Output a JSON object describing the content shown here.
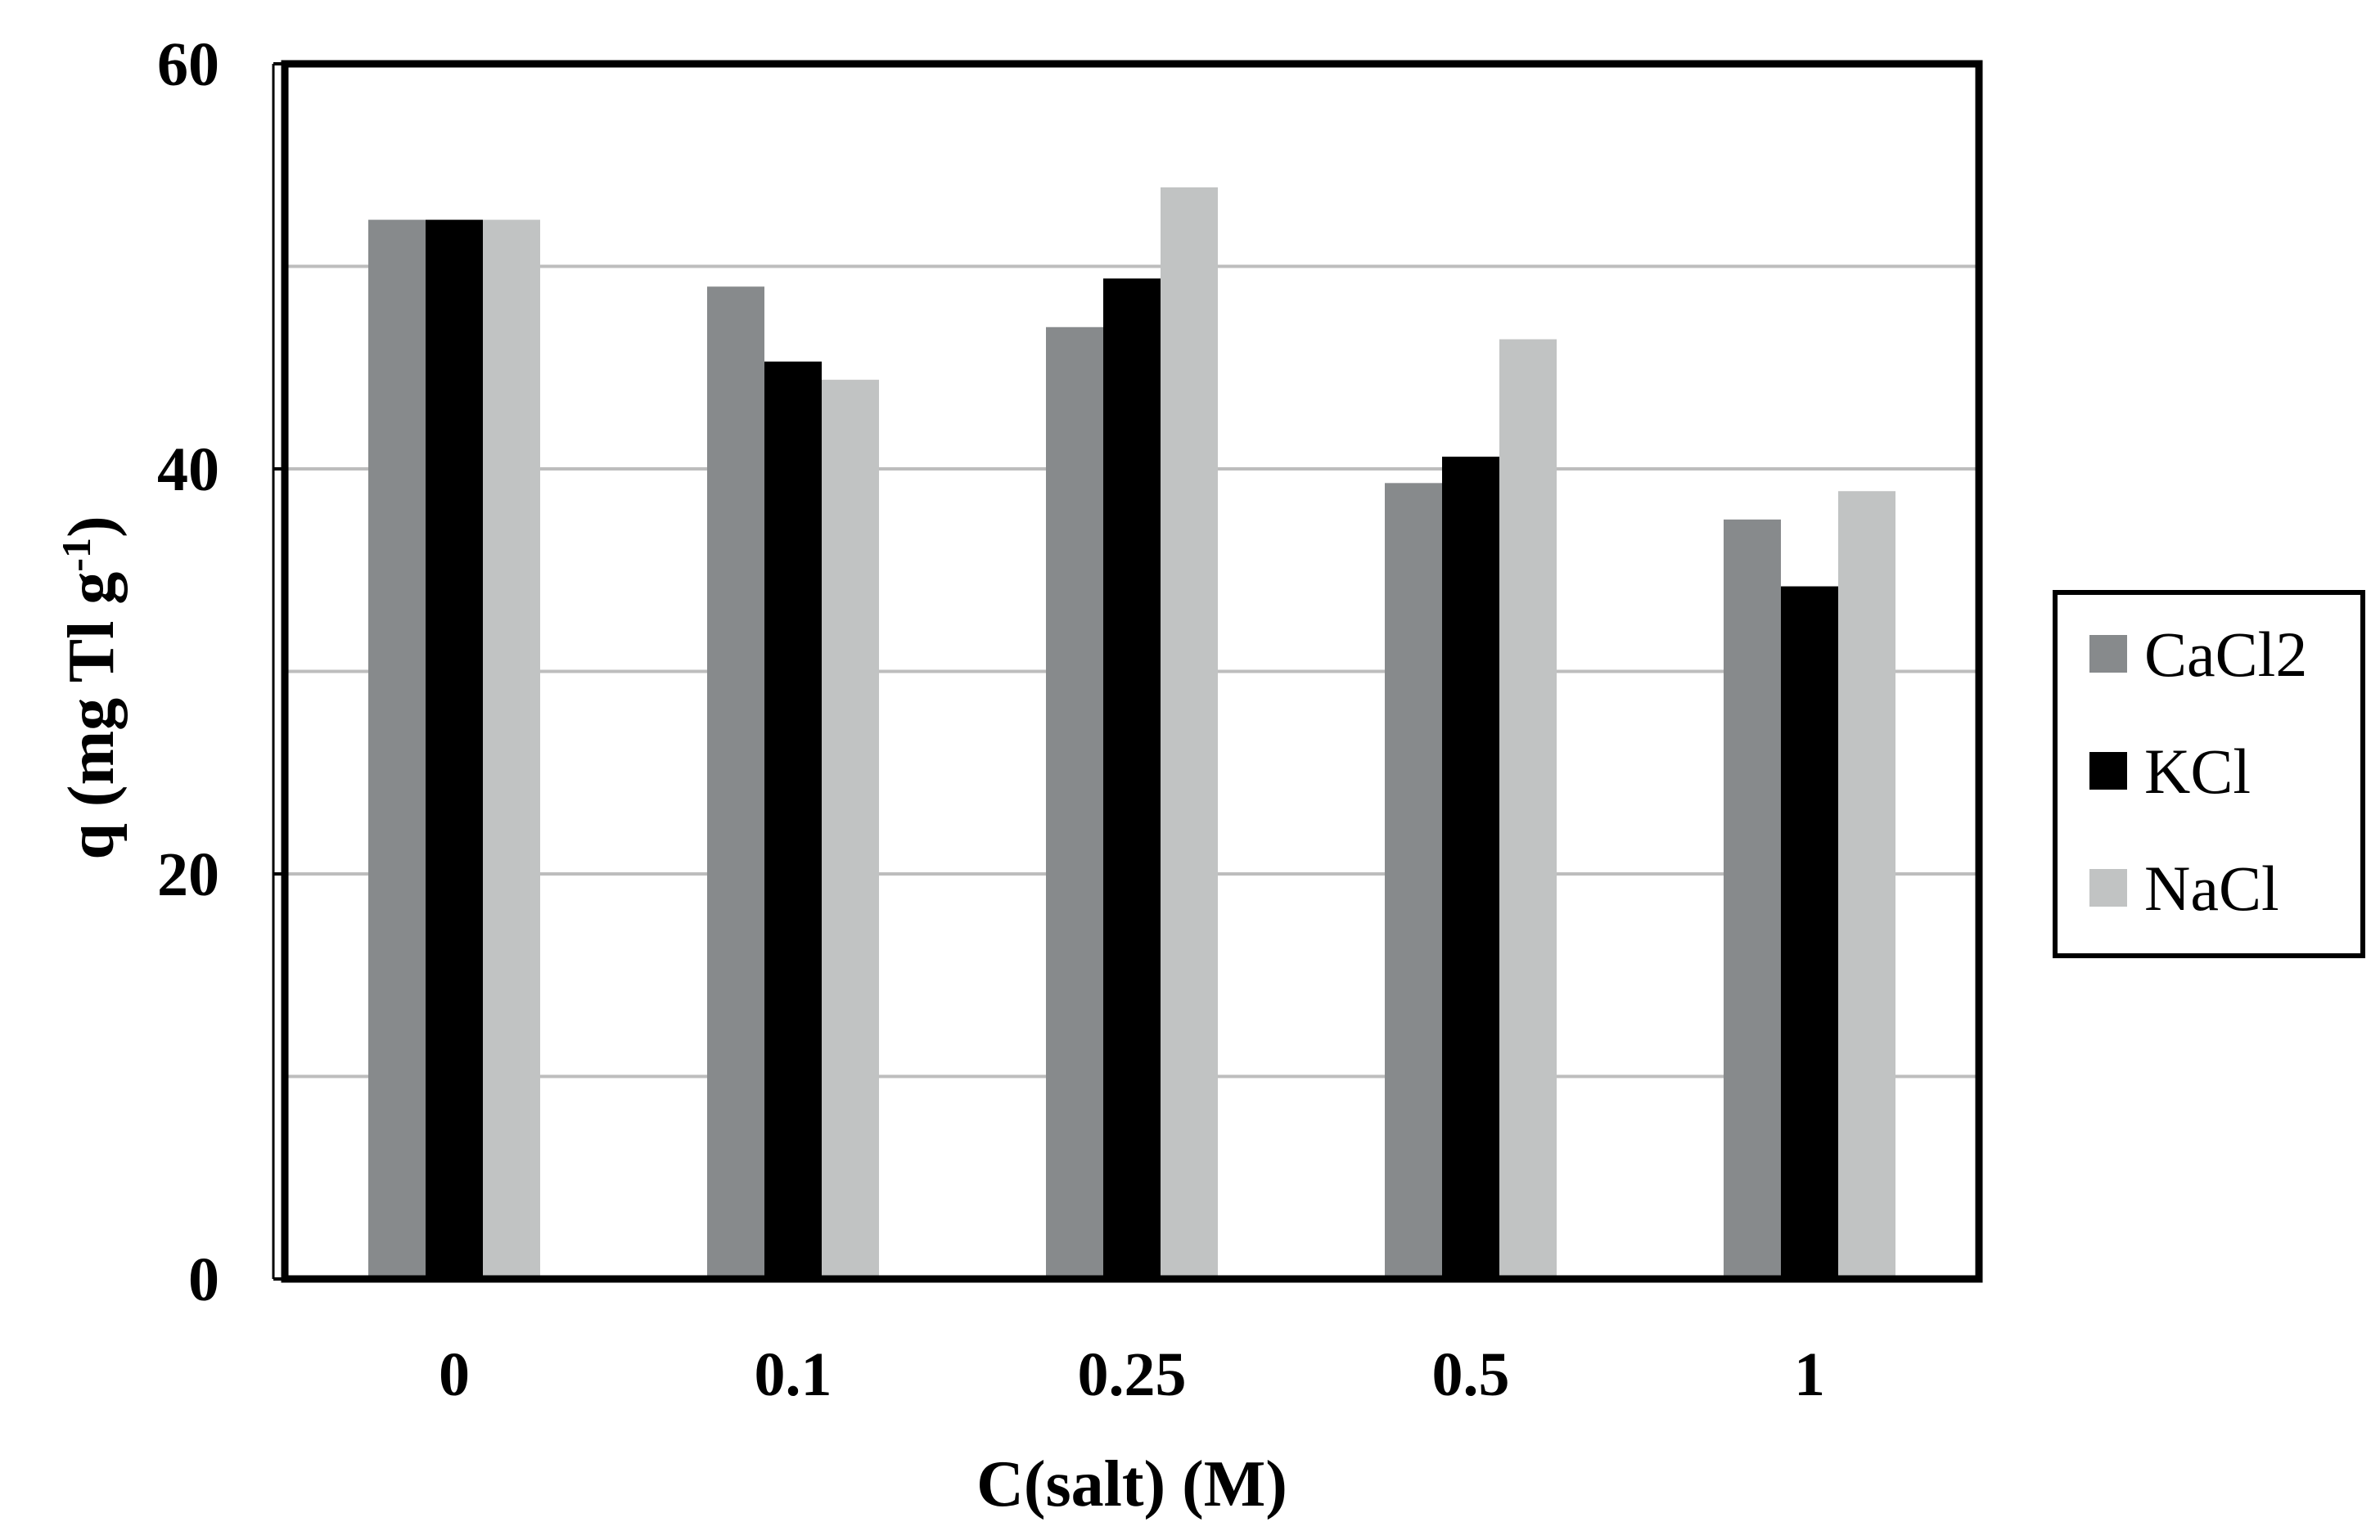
{
  "chart_data": {
    "type": "bar",
    "title": "",
    "xlabel": "C(salt) (M)",
    "ylabel_parts": {
      "main": "q (mg Tl g",
      "sup": "-1",
      "close": ")"
    },
    "categories": [
      "0",
      "0.1",
      "0.25",
      "0.5",
      "1"
    ],
    "yticks": [
      "0",
      "20",
      "40",
      "60"
    ],
    "ylim": [
      0,
      60
    ],
    "grid": true,
    "grid_step": 10,
    "legend_placement": "right",
    "series": [
      {
        "name": "CaCl2",
        "color": "#878a8c",
        "values": [
          52.3,
          49.0,
          47.0,
          39.3,
          37.5
        ]
      },
      {
        "name": "KCl",
        "color": "#000000",
        "values": [
          52.3,
          45.3,
          49.4,
          40.6,
          34.2
        ]
      },
      {
        "name": "NaCl",
        "color": "#c1c3c3",
        "values": [
          52.3,
          44.4,
          53.9,
          46.4,
          38.9
        ]
      }
    ]
  }
}
